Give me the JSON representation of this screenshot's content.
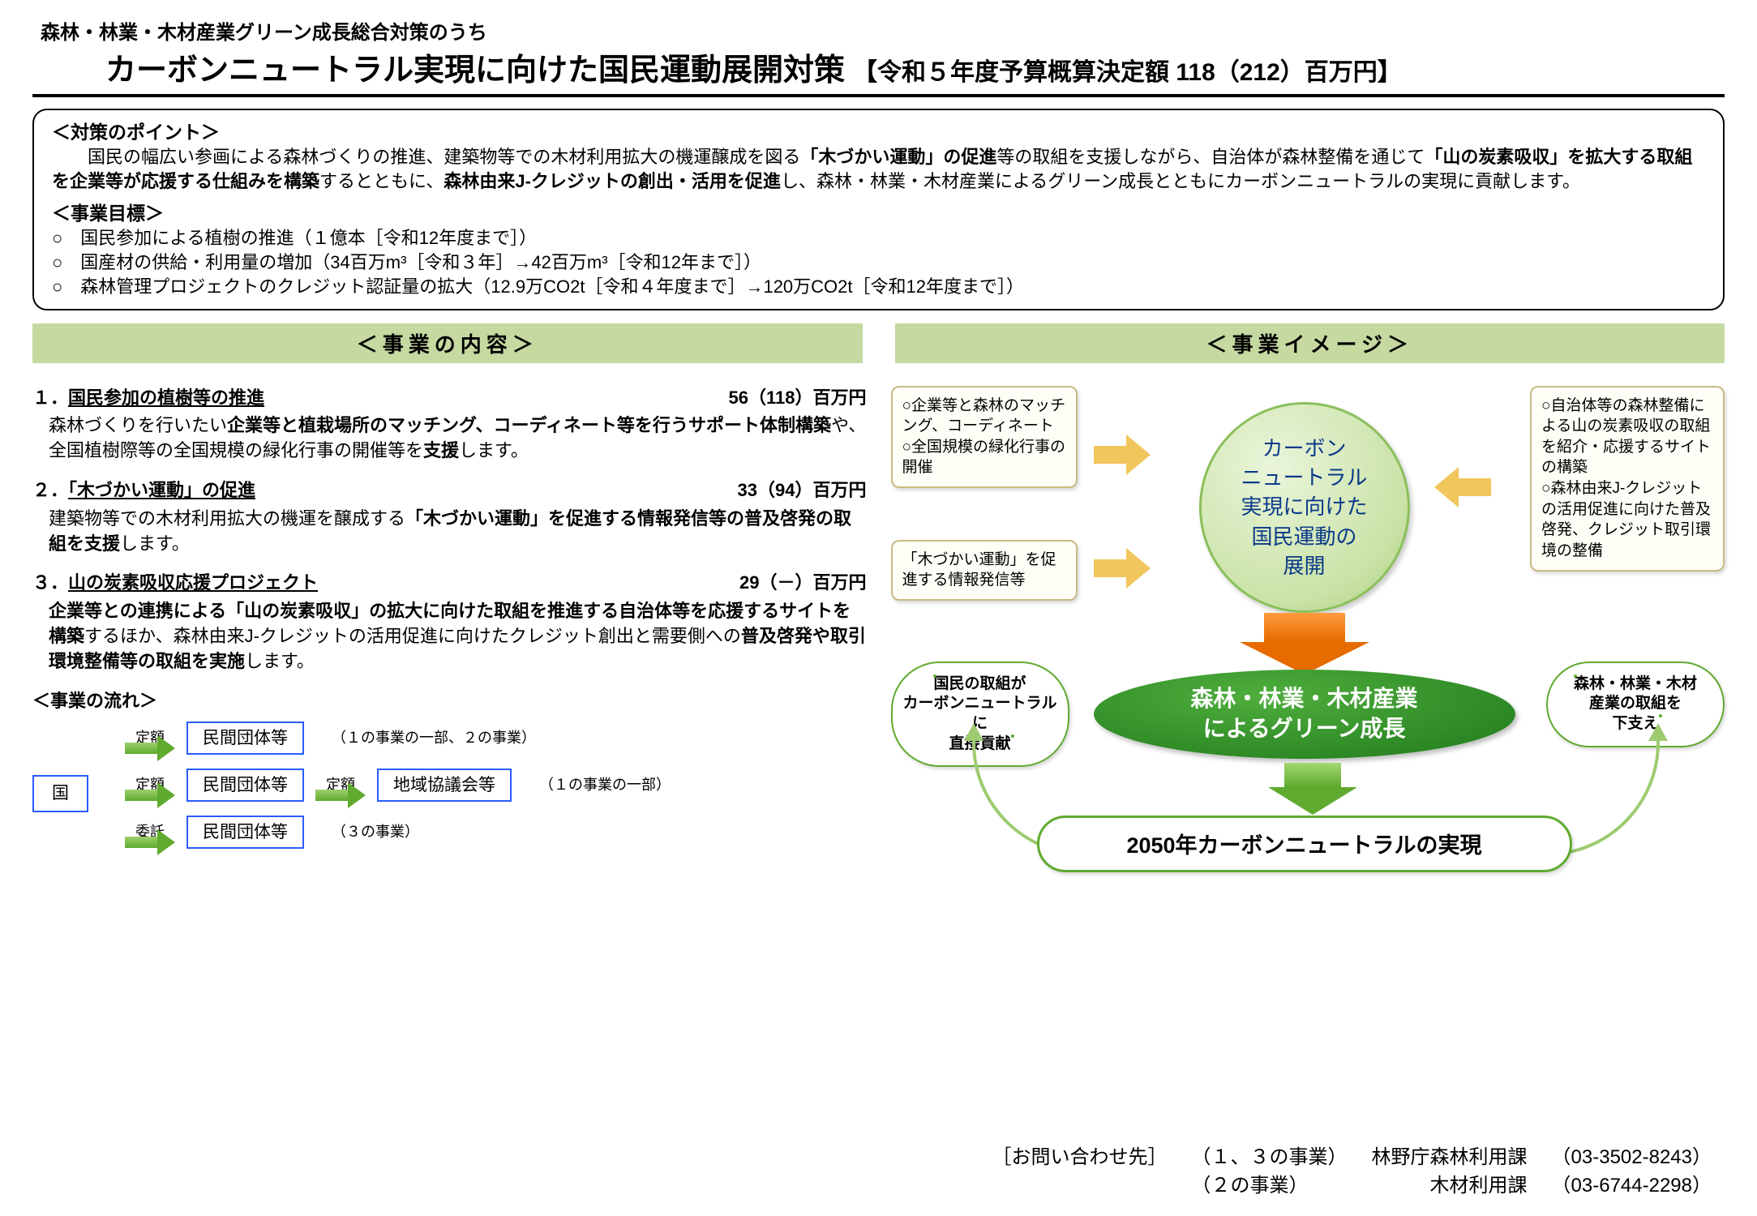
{
  "header": {
    "small": "森林・林業・木材産業グリーン成長総合対策のうち",
    "title": "カーボンニュートラル実現に向けた国民運動展開対策",
    "budget": "【令和５年度予算概算決定額 118（212）百万円】"
  },
  "points": {
    "heading": "＜対策のポイント＞",
    "body_html": "　国民の幅広い参画による森林づくりの推進、建築物等での木材利用拡大の機運醸成を図る<b>「木づかい運動」の促進</b>等の取組を支援しながら、自治体が森林整備を通じて<b>「山の炭素吸収」を拡大する取組を企業等が応援する仕組みを構築</b>するとともに、<b>森林由来J-クレジットの創出・活用を促進</b>し、森林・林業・木材産業によるグリーン成長とともにカーボンニュートラルの実現に貢献します。",
    "goal_heading": "＜事業目標＞",
    "goals": [
      "○　国民参加による植樹の推進（１億本［令和12年度まで］）",
      "○　国産材の供給・利用量の増加（34百万m³［令和３年］→42百万m³［令和12年まで］）",
      "○　森林管理プロジェクトのクレジット認証量の拡大（12.9万CO2t［令和４年度まで］→120万CO2t［令和12年度まで］）"
    ]
  },
  "bars": {
    "left": "＜事業の内容＞",
    "right": "＜事業イメージ＞"
  },
  "items": [
    {
      "no": "１．",
      "title": "国民参加の植樹等の推進",
      "amount": "56（118）百万円",
      "body_html": "森林づくりを行いたい<b>企業等と植栽場所のマッチング、コーディネート等を行うサポート体制構築</b>や、全国植樹際等の全国規模の緑化行事の開催等を<b>支援</b>します。"
    },
    {
      "no": "２．",
      "title": "「木づかい運動」の促進",
      "amount": "33（94）百万円",
      "body_html": "建築物等での木材利用拡大の機運を醸成する<b>「木づかい運動」を促進する情報発信等の普及啓発の取組を支援</b>します。"
    },
    {
      "no": "３．",
      "title": "山の炭素吸収応援プロジェクト",
      "amount": "29（－）百万円",
      "body_html": "<b>企業等との連携による「山の炭素吸収」の拡大に向けた取組を推進する自治体等を応援するサイトを構築</b>するほか、森林由来J-クレジットの活用促進に向けたクレジット創出と需要側への<b>普及啓発や取引環境整備等の取組を実施</b>します。"
    }
  ],
  "flow": {
    "title": "＜事業の流れ＞",
    "country": "国",
    "rows": [
      {
        "label": "定額",
        "box": "民間団体等",
        "note": "（１の事業の一部、２の事業）",
        "second": null
      },
      {
        "label": "定額",
        "box": "民間団体等",
        "note": "（１の事業の一部）",
        "second": {
          "label": "定額",
          "box": "地域協議会等"
        }
      },
      {
        "label": "委託",
        "box": "民間団体等",
        "note": "（３の事業）",
        "second": null
      }
    ]
  },
  "diagram": {
    "box_tl": "○企業等と森林のマッチング、コーディネート\n○全国規模の緑化行事の開催",
    "box_bl": "「木づかい運動」を促進する情報発信等",
    "box_tr": "○自治体等の森林整備による山の炭素吸収の取組を紹介・応援するサイトの構築\n○森林由来J-クレジットの活用促進に向けた普及啓発、クレジット取引環境の整備",
    "center": "カーボン\nニュートラル\n実現に向けた\n国民運動の\n展開",
    "green_oval": "森林・林業・木材産業\nによるグリーン成長",
    "cloud_l": "国民の取組が\nカーボンニュートラルに\n直接貢献",
    "cloud_r": "森林・林業・木材\n産業の取組を\n下支え",
    "goal": "2050年カーボンニュートラルの実現"
  },
  "contact": {
    "label": "［お問い合わせ先］",
    "rows": [
      {
        "scope": "（１、３の事業）",
        "dept": "林野庁森林利用課",
        "tel": "（03-3502-8243）"
      },
      {
        "scope": "（２の事業）",
        "dept": "木材利用課",
        "tel": "（03-6744-2298）"
      }
    ]
  },
  "colors": {
    "bar_bg": "#c5d9a1",
    "box_bg": "#fffef6",
    "box_border": "#c9bb82",
    "green_dark": "#1f7a1b",
    "green_mid": "#5faa2f",
    "green_light": "#9ecb70",
    "orange": "#e66b00",
    "yellow": "#f1c65c",
    "blue": "#2a5cff",
    "text_blue": "#0a3a8a"
  }
}
